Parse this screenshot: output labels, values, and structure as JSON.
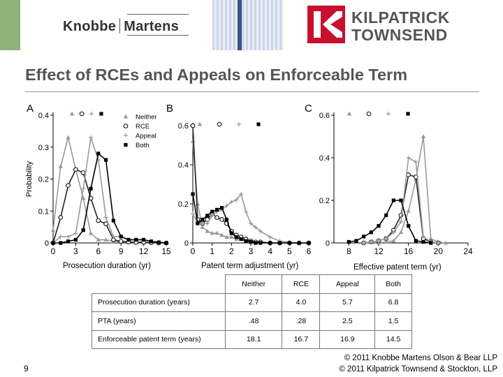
{
  "header": {
    "knobbe_logo_left": "Knobbe",
    "knobbe_logo_right": "Martens",
    "kt_logo_line1": "KILPATRICK",
    "kt_logo_line2": "TOWNSEND",
    "colors": {
      "green": "#8fb27a",
      "navy": "#3b5283",
      "kt_red": "#c8102e"
    }
  },
  "slide": {
    "title": "Effect of RCEs and Appeals on Enforceable Term",
    "page_number": "9",
    "copyright_line1": "© 2011 Knobbe Martens Olson & Bear LLP",
    "copyright_line2": "© 2011 Kilpatrick Townsend & Stockton, LLP"
  },
  "chart_data": [
    {
      "type": "line",
      "panel_label": "A",
      "xlabel": "Prosecution duration (yr)",
      "ylabel": "Probability",
      "xlim": [
        0,
        15
      ],
      "ylim": [
        0,
        0.4
      ],
      "xticks": [
        0,
        3,
        6,
        9,
        12,
        15
      ],
      "yticks": [
        0,
        0.1,
        0.2,
        0.3,
        0.4
      ],
      "ytick_labels": [
        "0",
        "0.1",
        "0.2",
        "0.3",
        "0.4"
      ],
      "legend": {
        "placement": "top-right",
        "entries": [
          "Neither",
          "RCE",
          "Appeal",
          "Both"
        ]
      },
      "series": [
        {
          "name": "Neither",
          "marker": "triangle",
          "color": "#999999",
          "x": [
            0,
            1,
            2,
            3,
            4,
            5,
            6,
            7,
            8,
            9,
            10,
            11,
            12,
            13,
            14,
            15
          ],
          "y": [
            0.04,
            0.24,
            0.33,
            0.23,
            0.14,
            0.03,
            0.01,
            0.01,
            0.005,
            0.003,
            0.002,
            0.002,
            0.002,
            0.001,
            0.001,
            0
          ]
        },
        {
          "name": "RCE",
          "marker": "circle",
          "color": "#222222",
          "x": [
            0,
            1,
            2,
            3,
            4,
            5,
            6,
            7,
            8,
            9,
            10,
            11,
            12,
            13,
            14,
            15
          ],
          "y": [
            0,
            0.08,
            0.18,
            0.23,
            0.22,
            0.14,
            0.07,
            0.06,
            0.01,
            0.005,
            0.003,
            0.002,
            0.002,
            0.001,
            0,
            0
          ]
        },
        {
          "name": "Appeal",
          "marker": "plus",
          "color": "#999999",
          "x": [
            0,
            1,
            2,
            3,
            4,
            5,
            6,
            7,
            8,
            9,
            10,
            11,
            12,
            13,
            14,
            15
          ],
          "y": [
            0,
            0.02,
            0.02,
            0.03,
            0.17,
            0.33,
            0.26,
            0.08,
            0.02,
            0.02,
            0.01,
            0.01,
            0.01,
            0.005,
            0.002,
            0
          ]
        },
        {
          "name": "Both",
          "marker": "square",
          "color": "#000000",
          "x": [
            0,
            1,
            2,
            3,
            4,
            5,
            6,
            7,
            8,
            9,
            10,
            11,
            12,
            13,
            14,
            15
          ],
          "y": [
            0,
            0,
            0.005,
            0.01,
            0.04,
            0.17,
            0.28,
            0.26,
            0.07,
            0.02,
            0.01,
            0.01,
            0.01,
            0.005,
            0.002,
            0
          ]
        }
      ]
    },
    {
      "type": "line",
      "panel_label": "B",
      "xlabel": "Patent term adjustment (yr)",
      "ylabel": "",
      "xlim": [
        0,
        6
      ],
      "ylim": [
        0,
        0.6
      ],
      "xticks": [
        0,
        1,
        2,
        3,
        4,
        5,
        6
      ],
      "yticks": [
        0,
        0.2,
        0.4,
        0.6
      ],
      "ytick_labels": [
        "0",
        "0.2",
        "0.4",
        "0.6"
      ],
      "series": [
        {
          "name": "Neither",
          "marker": "triangle",
          "color": "#999999",
          "x": [
            0,
            0.25,
            0.5,
            0.75,
            1,
            1.25,
            1.5,
            1.75,
            2,
            2.25,
            2.5,
            2.75,
            3,
            3.25,
            3.5,
            4,
            4.5,
            5,
            5.5,
            6
          ],
          "y": [
            0.52,
            0.2,
            0.08,
            0.06,
            0.05,
            0.05,
            0.04,
            0.03,
            0.03,
            0.02,
            0.02,
            0.01,
            0.01,
            0.005,
            0.005,
            0,
            0,
            0,
            0,
            0
          ]
        },
        {
          "name": "RCE",
          "marker": "circle",
          "color": "#222222",
          "x": [
            0,
            0.25,
            0.5,
            0.75,
            1,
            1.25,
            1.5,
            1.75,
            2,
            2.25,
            2.5,
            2.75,
            3,
            3.25,
            3.5,
            4,
            4.5,
            5,
            5.5,
            6
          ],
          "y": [
            0.6,
            0.12,
            0.1,
            0.12,
            0.15,
            0.13,
            0.12,
            0.1,
            0.06,
            0.04,
            0.03,
            0.02,
            0.01,
            0.005,
            0.005,
            0,
            0,
            0,
            0,
            0
          ]
        },
        {
          "name": "Appeal",
          "marker": "plus",
          "color": "#999999",
          "x": [
            0,
            0.25,
            0.5,
            0.75,
            1,
            1.25,
            1.5,
            1.75,
            2,
            2.25,
            2.5,
            2.75,
            3,
            3.25,
            3.5,
            4,
            4.5,
            5,
            5.5,
            6
          ],
          "y": [
            0.15,
            0.1,
            0.1,
            0.1,
            0.14,
            0.16,
            0.17,
            0.19,
            0.21,
            0.22,
            0.25,
            0.16,
            0.1,
            0.08,
            0.06,
            0.03,
            0.01,
            0.005,
            0,
            0
          ]
        },
        {
          "name": "Both",
          "marker": "square",
          "color": "#000000",
          "x": [
            0,
            0.25,
            0.5,
            0.75,
            1,
            1.25,
            1.5,
            1.75,
            2,
            2.25,
            2.5,
            2.75,
            3,
            3.25,
            3.5,
            4,
            4.5,
            5,
            5.5,
            6
          ],
          "y": [
            0.25,
            0.1,
            0.12,
            0.14,
            0.16,
            0.17,
            0.18,
            0.12,
            0.05,
            0.03,
            0.02,
            0.01,
            0.005,
            0,
            0,
            0,
            0,
            0,
            0,
            0
          ]
        }
      ]
    },
    {
      "type": "line",
      "panel_label": "C",
      "xlabel": "Effective patent term (yr)",
      "ylabel": "",
      "xlim": [
        6,
        24
      ],
      "ylim": [
        0,
        0.6
      ],
      "xticks": [
        8,
        12,
        16,
        20,
        24
      ],
      "yticks": [
        0,
        0.2,
        0.4,
        0.6
      ],
      "ytick_labels": [
        "0",
        "0.2",
        "0.4",
        "0.6"
      ],
      "series": [
        {
          "name": "Neither",
          "marker": "triangle",
          "color": "#999999",
          "x": [
            12,
            13,
            14,
            15,
            16,
            17,
            18,
            19,
            20,
            21
          ],
          "y": [
            0,
            0.005,
            0.01,
            0.05,
            0.15,
            0.3,
            0.5,
            0.02,
            0.005,
            0
          ]
        },
        {
          "name": "RCE",
          "marker": "circle",
          "color": "#222222",
          "x": [
            10,
            11,
            12,
            13,
            14,
            15,
            16,
            17,
            18,
            19,
            20
          ],
          "y": [
            0,
            0.005,
            0.01,
            0.02,
            0.06,
            0.13,
            0.32,
            0.31,
            0.02,
            0.005,
            0
          ]
        },
        {
          "name": "Appeal",
          "marker": "plus",
          "color": "#999999",
          "x": [
            10,
            11,
            12,
            13,
            14,
            15,
            16,
            17,
            18,
            19,
            20
          ],
          "y": [
            0,
            0.005,
            0.01,
            0.02,
            0.05,
            0.1,
            0.4,
            0.38,
            0.03,
            0.005,
            0
          ]
        },
        {
          "name": "Both",
          "marker": "square",
          "color": "#000000",
          "x": [
            8,
            9,
            10,
            11,
            12,
            13,
            14,
            15,
            16,
            17,
            18,
            19
          ],
          "y": [
            0.005,
            0.01,
            0.03,
            0.05,
            0.08,
            0.13,
            0.2,
            0.2,
            0.08,
            0.01,
            0.005,
            0
          ]
        }
      ]
    },
    {
      "type": "table",
      "columns": [
        "Neither",
        "RCE",
        "Appeal",
        "Both"
      ],
      "rows": [
        {
          "label": "Prosecution duration (years)",
          "values": [
            "2.7",
            "4.0",
            "5.7",
            "6.8"
          ]
        },
        {
          "label": "PTA (years)",
          "values": [
            ".48",
            ".28",
            "2.5",
            "1.5"
          ]
        },
        {
          "label": "Enforceable patent term (years)",
          "values": [
            "18.1",
            "16.7",
            "16.9",
            "14.5"
          ]
        }
      ]
    }
  ]
}
